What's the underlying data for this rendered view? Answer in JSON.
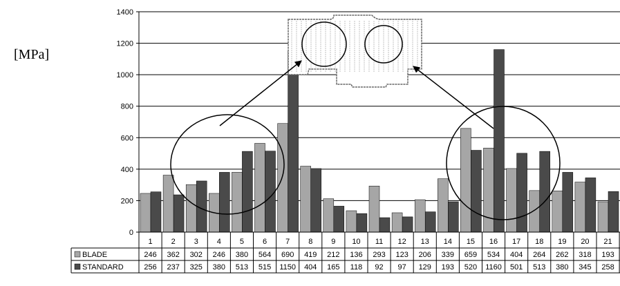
{
  "chart_data": {
    "type": "bar",
    "ylabel": "[MPa]",
    "ylim": [
      0,
      1400
    ],
    "yticks": [
      0,
      200,
      400,
      600,
      800,
      1000,
      1200,
      1400
    ],
    "grid": true,
    "categories": [
      "1",
      "2",
      "3",
      "4",
      "5",
      "6",
      "7",
      "8",
      "9",
      "10",
      "11",
      "12",
      "13",
      "14",
      "15",
      "16",
      "17",
      "18",
      "19",
      "20",
      "21"
    ],
    "series": [
      {
        "name": "BLADE",
        "color": "#a6a6a6",
        "values": [
          246,
          362,
          302,
          246,
          380,
          564,
          690,
          419,
          212,
          136,
          293,
          123,
          206,
          339,
          659,
          534,
          404,
          264,
          262,
          318,
          193
        ],
        "labels": [
          "246",
          "362",
          "302",
          "246",
          "380",
          "564",
          "690",
          "419",
          "212",
          "136",
          "293",
          "123",
          "206",
          "339",
          "659",
          "534",
          "404",
          "264",
          "262",
          "318",
          "193"
        ]
      },
      {
        "name": "STANDARD",
        "color": "#4a4a4a",
        "values": [
          256,
          237,
          325,
          380,
          513,
          515,
          1150,
          404,
          165,
          118,
          92,
          97,
          129,
          193,
          520,
          1160,
          501,
          513,
          380,
          345,
          258
        ],
        "labels": [
          "256",
          "237",
          "325",
          "380",
          "513",
          "515",
          "1150",
          "404",
          "165",
          "118",
          "92",
          "97",
          "129",
          "193",
          "520",
          "1160",
          "501",
          "513",
          "380",
          "345",
          "258"
        ]
      }
    ],
    "legend": "data table below chart",
    "annotations": "two circles on the bar groups with arrows pointing to circled regions of a component sketch at the top"
  }
}
